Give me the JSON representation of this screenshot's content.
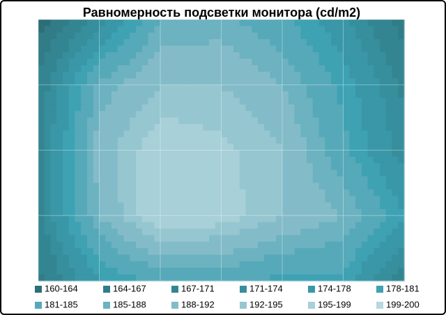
{
  "chart_data": {
    "type": "contour",
    "title": "Равномерность  подсветки монитора (cd/m2)",
    "z": [
      [
        162,
        172,
        185,
        186,
        182,
        175,
        165
      ],
      [
        168,
        186,
        192,
        192,
        188,
        180,
        170
      ],
      [
        170,
        190,
        198,
        196,
        192,
        182,
        172
      ],
      [
        170,
        188,
        199,
        197,
        192,
        188,
        178
      ],
      [
        166,
        178,
        182,
        182,
        180,
        180,
        168
      ]
    ],
    "levels": [
      160,
      164,
      167,
      171,
      174,
      178,
      181,
      185,
      188,
      192,
      195,
      199,
      200
    ],
    "bands": [
      {
        "name": "160-164",
        "color": "#2d6e78"
      },
      {
        "name": "164-167",
        "color": "#317c87"
      },
      {
        "name": "167-171",
        "color": "#348592"
      },
      {
        "name": "171-174",
        "color": "#378e9c"
      },
      {
        "name": "174-178",
        "color": "#3a97a7"
      },
      {
        "name": "178-181",
        "color": "#3ea2b3"
      },
      {
        "name": "181-185",
        "color": "#56a9b9"
      },
      {
        "name": "185-188",
        "color": "#6cb2c0"
      },
      {
        "name": "188-192",
        "color": "#83bcc8"
      },
      {
        "name": "192-195",
        "color": "#96c6d0"
      },
      {
        "name": "195-199",
        "color": "#a8d0d8"
      },
      {
        "name": "199-200",
        "color": "#b7d8de"
      }
    ],
    "grid": true
  }
}
